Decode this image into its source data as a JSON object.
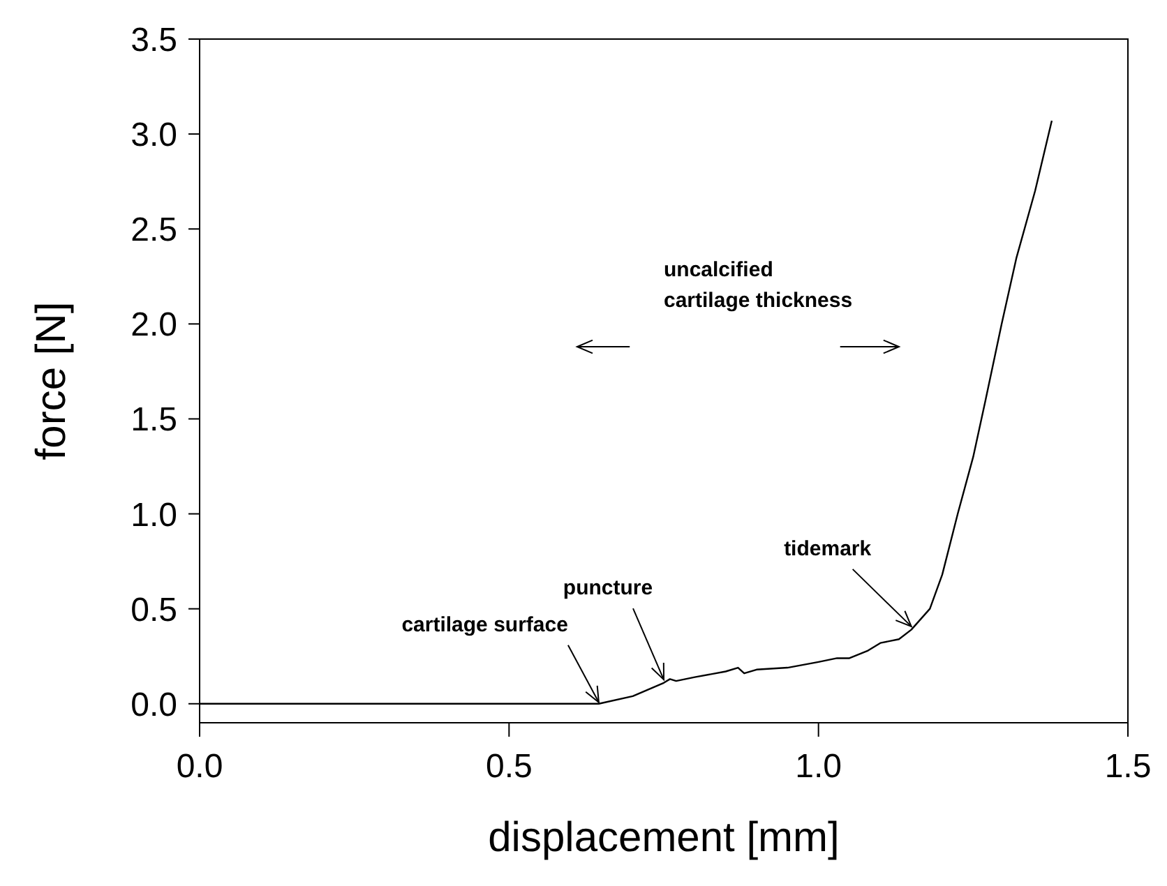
{
  "chart_data": {
    "type": "line",
    "xlabel": "displacement [mm]",
    "ylabel": "force [N]",
    "x": [
      0,
      0.3,
      0.645,
      0.7,
      0.75,
      0.76,
      0.77,
      0.8,
      0.85,
      0.87,
      0.88,
      0.9,
      0.95,
      1.0,
      1.03,
      1.05,
      1.08,
      1.1,
      1.13,
      1.15,
      1.18,
      1.2,
      1.225,
      1.25,
      1.27,
      1.296,
      1.32,
      1.35,
      1.377
    ],
    "series": [
      {
        "color": "#000000",
        "values": [
          0,
          0,
          0,
          0.04,
          0.11,
          0.13,
          0.12,
          0.14,
          0.17,
          0.19,
          0.16,
          0.18,
          0.19,
          0.22,
          0.24,
          0.24,
          0.28,
          0.32,
          0.34,
          0.39,
          0.5,
          0.68,
          1.0,
          1.3,
          1.6,
          2.0,
          2.35,
          2.7,
          3.07
        ]
      }
    ],
    "xlim": [
      0,
      1.5
    ],
    "xticks": [
      {
        "value": 0,
        "label": "0.0"
      },
      0.5,
      {
        "value": 1,
        "label": "1.0"
      },
      1.5
    ],
    "ylim": [
      -0.1,
      3.5
    ],
    "yticks": [
      {
        "value": 0,
        "label": "0.0"
      },
      0.5,
      {
        "value": 1,
        "label": "1.0"
      },
      1.5,
      {
        "value": 2,
        "label": "2.0"
      },
      2.5,
      {
        "value": 3,
        "label": "3.0"
      },
      3.5
    ],
    "marker": "none",
    "line_style": "solid",
    "annotations": [
      {
        "text": "cartilage surface",
        "x": 0.645,
        "y": 0
      },
      {
        "text": "puncture",
        "x": 0.75,
        "y": 0.12
      },
      {
        "text": "tidemark",
        "x": 1.15,
        "y": 0.4
      },
      "uncalcified\ncartilage thickness"
    ]
  }
}
